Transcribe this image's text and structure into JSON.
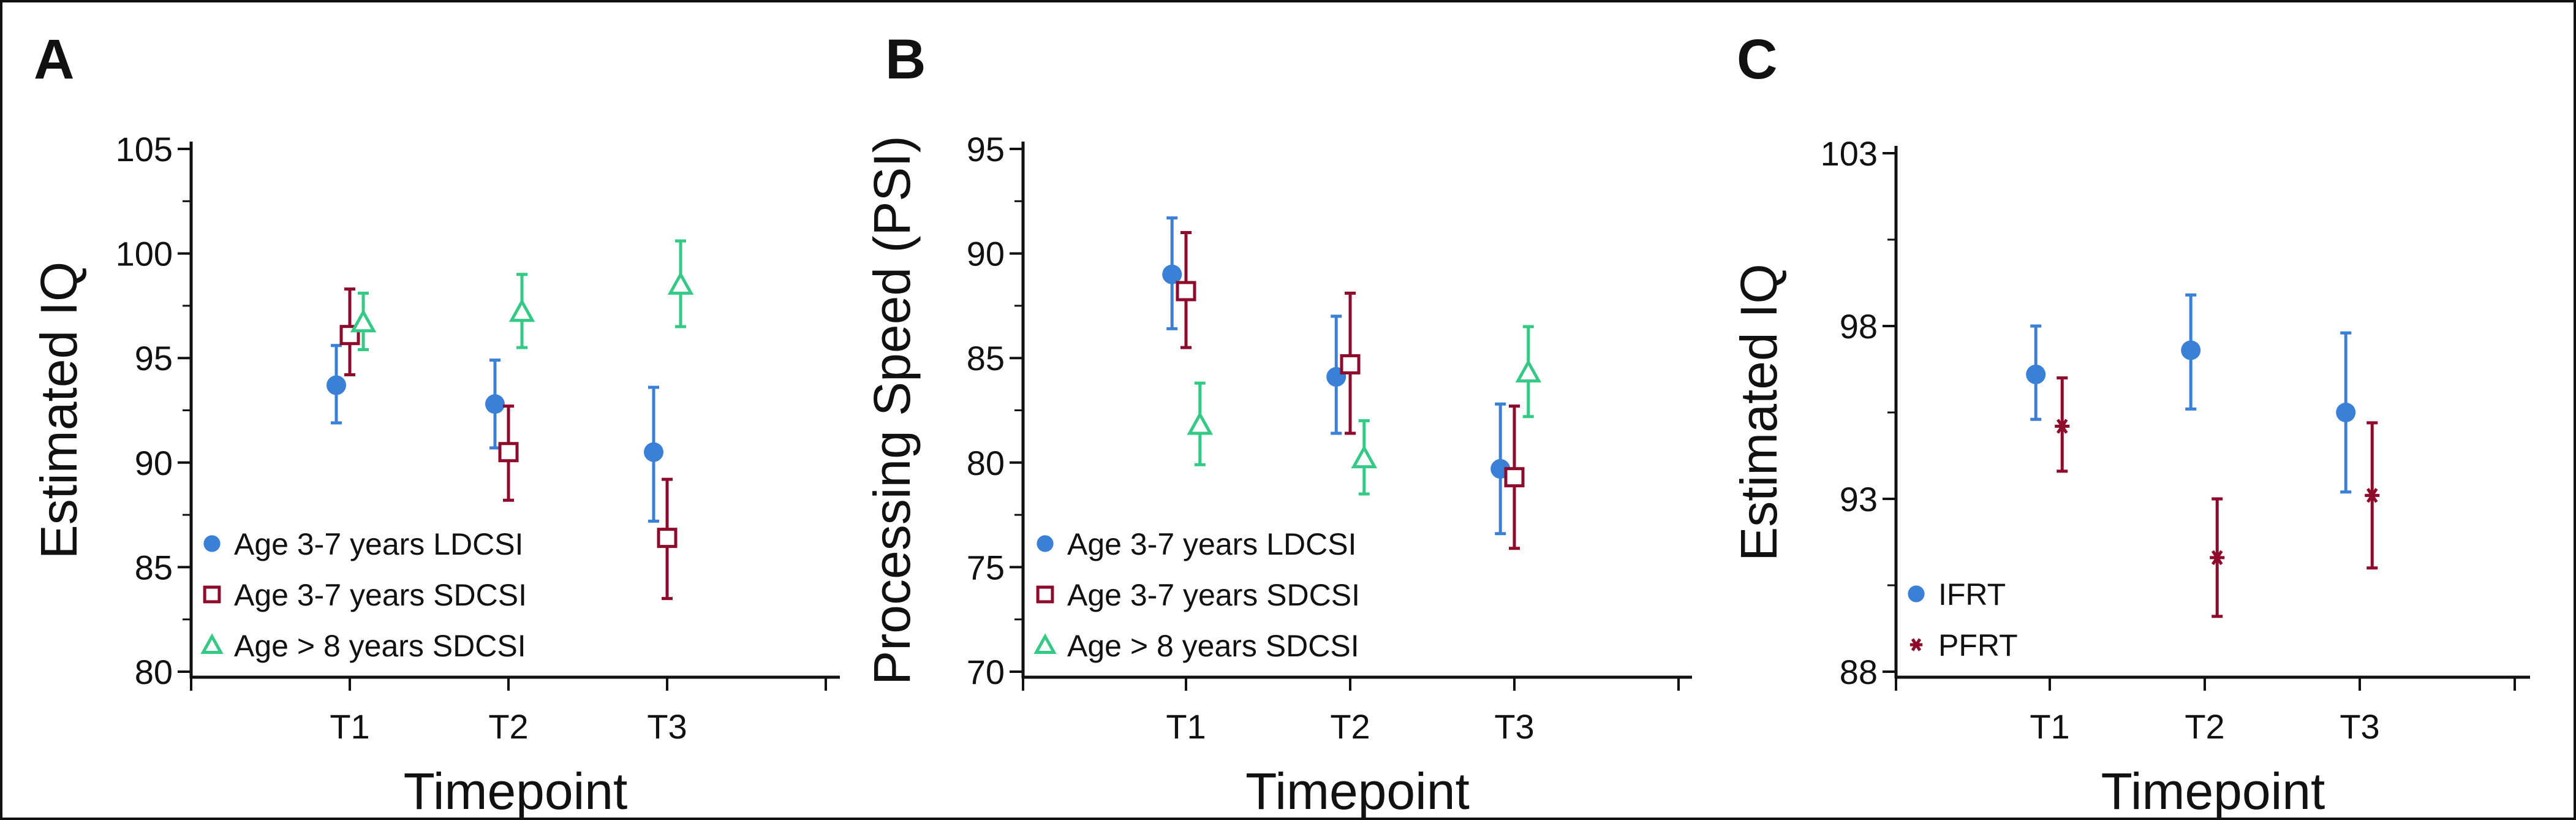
{
  "chart_data": [
    {
      "type": "scatter",
      "panel_label": "A",
      "xlabel": "Timepoint",
      "ylabel": "Estimated IQ",
      "categories": [
        "T1",
        "T2",
        "T3"
      ],
      "ylim": [
        80,
        105
      ],
      "yticks": [
        "80",
        "85",
        "90",
        "95",
        "100",
        "105"
      ],
      "ytick_values": [
        80,
        85,
        90,
        95,
        100,
        105
      ],
      "grid": false,
      "legend_position": "bottom-left",
      "series": [
        {
          "name": "Age 3-7 years LDCSI",
          "marker": "circle",
          "color": "#3a80d6",
          "values": [
            93.7,
            92.8,
            90.5
          ],
          "lower": [
            91.9,
            90.7,
            87.2
          ],
          "upper": [
            95.6,
            94.9,
            93.6
          ]
        },
        {
          "name": "Age 3-7 years SDCSI",
          "marker": "square",
          "color": "#8e0b2c",
          "values": [
            96.1,
            90.5,
            86.4
          ],
          "lower": [
            94.2,
            88.2,
            83.5
          ],
          "upper": [
            98.3,
            92.7,
            89.2
          ]
        },
        {
          "name": "Age > 8 years SDCSI",
          "marker": "triangle",
          "color": "#34c985",
          "values": [
            96.7,
            97.2,
            98.5
          ],
          "lower": [
            95.4,
            95.5,
            96.5
          ],
          "upper": [
            98.1,
            99.0,
            100.6
          ]
        }
      ]
    },
    {
      "type": "scatter",
      "panel_label": "B",
      "xlabel": "Timepoint",
      "ylabel": "Processing Speed (PSI)",
      "categories": [
        "T1",
        "T2",
        "T3"
      ],
      "ylim": [
        70,
        95
      ],
      "yticks": [
        "70",
        "75",
        "80",
        "85",
        "90",
        "95"
      ],
      "ytick_values": [
        70,
        75,
        80,
        85,
        90,
        95
      ],
      "grid": false,
      "legend_position": "bottom-left",
      "series": [
        {
          "name": "Age 3-7 years LDCSI",
          "marker": "circle",
          "color": "#3a80d6",
          "values": [
            89.0,
            84.1,
            79.7
          ],
          "lower": [
            86.4,
            81.4,
            76.6
          ],
          "upper": [
            91.7,
            87.0,
            82.8
          ]
        },
        {
          "name": "Age 3-7 years SDCSI",
          "marker": "square",
          "color": "#8e0b2c",
          "values": [
            88.2,
            84.7,
            79.3
          ],
          "lower": [
            85.5,
            81.4,
            75.9
          ],
          "upper": [
            91.0,
            88.1,
            82.7
          ]
        },
        {
          "name": "Age > 8 years SDCSI",
          "marker": "triangle",
          "color": "#34c985",
          "values": [
            81.8,
            80.2,
            84.3
          ],
          "lower": [
            79.9,
            78.5,
            82.2
          ],
          "upper": [
            83.8,
            82.0,
            86.5
          ]
        }
      ]
    },
    {
      "type": "scatter",
      "panel_label": "C",
      "xlabel": "Timepoint",
      "ylabel": "Estimated IQ",
      "categories": [
        "T1",
        "T2",
        "T3"
      ],
      "ylim": [
        88,
        103
      ],
      "yticks": [
        "88",
        "93",
        "98",
        "103"
      ],
      "ytick_values": [
        88,
        93,
        98,
        103
      ],
      "grid": false,
      "legend_position": "bottom-left",
      "series": [
        {
          "name": "IFRT",
          "marker": "circle",
          "color": "#3a80d6",
          "values": [
            96.6,
            97.3,
            95.5
          ],
          "lower": [
            95.3,
            95.6,
            93.2
          ],
          "upper": [
            98.0,
            98.9,
            97.8
          ]
        },
        {
          "name": "PFRT",
          "marker": "asterisk",
          "color": "#8e0b2c",
          "values": [
            95.1,
            91.3,
            93.1
          ],
          "lower": [
            93.8,
            89.6,
            91.0
          ],
          "upper": [
            96.5,
            93.0,
            95.2
          ]
        }
      ]
    }
  ]
}
